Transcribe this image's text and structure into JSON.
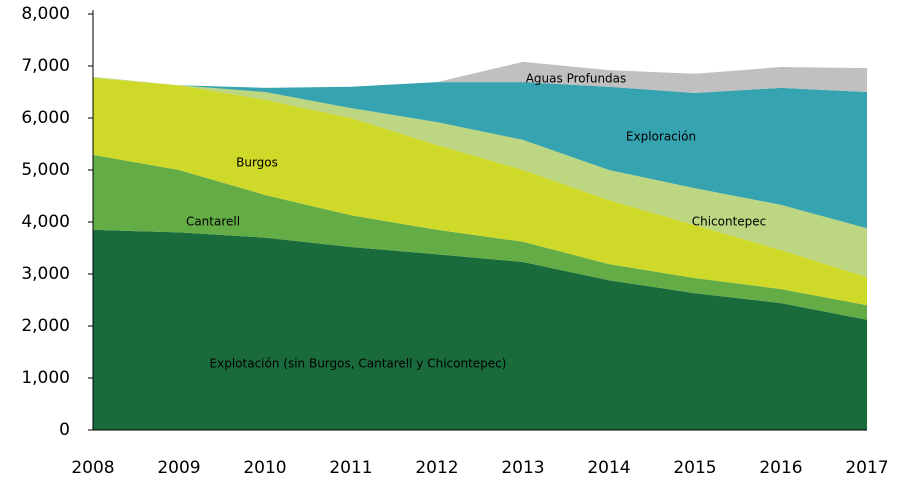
{
  "chart_data": {
    "type": "stacked_area",
    "categories": [
      "2008",
      "2009",
      "2010",
      "2011",
      "2012",
      "2013",
      "2014",
      "2015",
      "2016",
      "2017"
    ],
    "series": [
      {
        "name": "Explotación (sin Burgos, Cantarell y Chicontepec)",
        "color": "#1a6b3c",
        "values": [
          3850,
          3800,
          3700,
          3520,
          3380,
          3230,
          2880,
          2630,
          2440,
          2120
        ]
      },
      {
        "name": "Cantarell",
        "color": "#64ad46",
        "values": [
          1440,
          1200,
          820,
          610,
          470,
          390,
          310,
          290,
          270,
          280
        ]
      },
      {
        "name": "Burgos",
        "color": "#cfd92a",
        "values": [
          1480,
          1630,
          1830,
          1870,
          1630,
          1380,
          1230,
          1020,
          750,
          540
        ]
      },
      {
        "name": "Chicontepec",
        "color": "#bcd681",
        "values": [
          20,
          0,
          150,
          190,
          440,
          580,
          580,
          710,
          870,
          940
        ]
      },
      {
        "name": "Exploración",
        "color": "#35a3b0",
        "values": [
          0,
          0,
          80,
          410,
          770,
          1110,
          1600,
          1830,
          2250,
          2620
        ]
      },
      {
        "name": "Aguas Profundas",
        "color": "#c0c0c0",
        "values": [
          0,
          0,
          0,
          0,
          0,
          390,
          320,
          370,
          400,
          460
        ]
      }
    ],
    "ylim": [
      0,
      8000
    ],
    "yticks": [
      0,
      {
        "value": 1000,
        "label": "1,000"
      },
      {
        "value": 2000,
        "label": "2,000"
      },
      {
        "value": 3000,
        "label": "3,000"
      },
      {
        "value": 4000,
        "label": "4,000"
      },
      {
        "value": 5000,
        "label": "5,000"
      },
      {
        "value": 6000,
        "label": "6,000"
      },
      {
        "value": 7000,
        "label": "7,000"
      },
      {
        "value": 8000,
        "label": "8,000"
      }
    ],
    "grid": false
  }
}
